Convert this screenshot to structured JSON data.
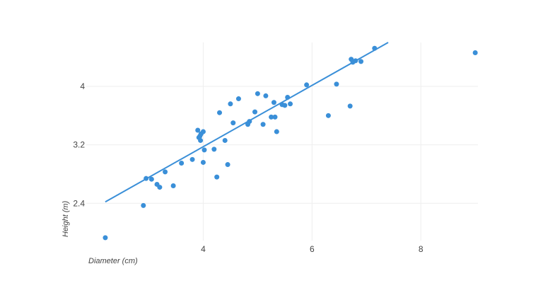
{
  "chart_data": {
    "type": "scatter",
    "title": "",
    "xlabel": "Diameter (cm)",
    "ylabel": "Height (m)",
    "xlim": [
      1.85,
      9.05
    ],
    "ylim": [
      1.89,
      4.6
    ],
    "xticks": [
      4,
      6,
      8
    ],
    "yticks": [
      2.4,
      3.2,
      4
    ],
    "xtick_labels": [
      "4",
      "6",
      "8"
    ],
    "ytick_labels": [
      "2.4",
      "3.2",
      "4"
    ],
    "grid": true,
    "color": "#3a8fd8",
    "series": [
      {
        "points": [
          [
            2.2,
            1.93
          ],
          [
            2.9,
            2.37
          ],
          [
            2.95,
            2.74
          ],
          [
            3.05,
            2.73
          ],
          [
            3.15,
            2.66
          ],
          [
            3.2,
            2.62
          ],
          [
            3.3,
            2.83
          ],
          [
            3.45,
            2.64
          ],
          [
            3.6,
            2.95
          ],
          [
            3.8,
            3.0
          ],
          [
            3.9,
            3.4
          ],
          [
            3.92,
            3.3
          ],
          [
            3.94,
            3.32
          ],
          [
            3.95,
            3.26
          ],
          [
            3.96,
            3.35
          ],
          [
            4.0,
            3.38
          ],
          [
            4.0,
            2.96
          ],
          [
            4.02,
            3.13
          ],
          [
            4.2,
            3.14
          ],
          [
            4.25,
            2.76
          ],
          [
            4.3,
            3.64
          ],
          [
            4.4,
            3.26
          ],
          [
            4.45,
            2.93
          ],
          [
            4.5,
            3.76
          ],
          [
            4.55,
            3.5
          ],
          [
            4.65,
            3.83
          ],
          [
            4.82,
            3.48
          ],
          [
            4.85,
            3.52
          ],
          [
            4.95,
            3.65
          ],
          [
            5.0,
            3.9
          ],
          [
            5.1,
            3.48
          ],
          [
            5.15,
            3.87
          ],
          [
            5.25,
            3.58
          ],
          [
            5.3,
            3.78
          ],
          [
            5.32,
            3.58
          ],
          [
            5.35,
            3.38
          ],
          [
            5.45,
            3.75
          ],
          [
            5.5,
            3.74
          ],
          [
            5.55,
            3.85
          ],
          [
            5.6,
            3.76
          ],
          [
            5.9,
            4.02
          ],
          [
            6.3,
            3.6
          ],
          [
            6.45,
            4.03
          ],
          [
            6.7,
            3.73
          ],
          [
            6.72,
            4.37
          ],
          [
            6.75,
            4.33
          ],
          [
            6.8,
            4.35
          ],
          [
            6.9,
            4.34
          ],
          [
            7.15,
            4.52
          ],
          [
            9.0,
            4.46
          ]
        ]
      }
    ],
    "fit_line": {
      "x": [
        2.2,
        7.4
      ],
      "y": [
        2.42,
        4.6
      ]
    }
  }
}
